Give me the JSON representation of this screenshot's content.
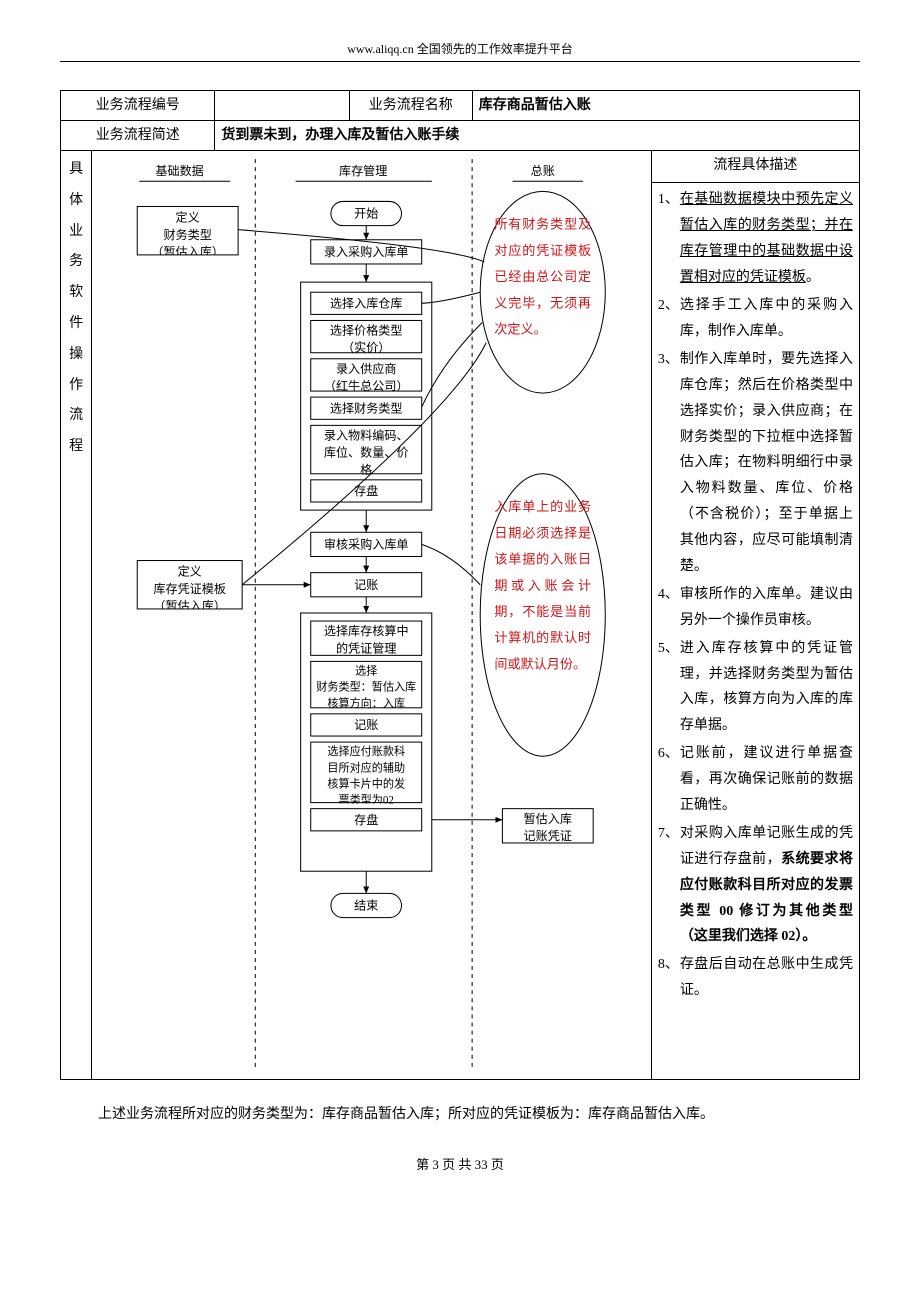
{
  "header": {
    "text": "www.aliqq.cn   全国领先的工作效率提升平台"
  },
  "table": {
    "row1": {
      "c1": "业务流程编号",
      "c2": "",
      "c3": "业务流程名称",
      "c4": "库存商品暂估入账"
    },
    "row2": {
      "c1": "业务流程简述",
      "c2": "货到票未到，办理入库及暂估入账手续"
    }
  },
  "side_label": "具体业务软件操作流程",
  "lanes": {
    "l1": "基础数据",
    "l2": "库存管理",
    "l3": "总账"
  },
  "nodes": {
    "def_fintype": "定义\n财务类型\n（暂估入库）",
    "start": "开始",
    "rec_in": "录入采购入库单",
    "sel_wh": "选择入库仓库",
    "sel_price": "选择价格类型\n（实价）",
    "rec_sup": "录入供应商\n（红牛总公司）",
    "sel_fin": "选择财务类型",
    "rec_mat": "录入物料编码、\n库位、数量、价\n格",
    "save1": "存盘",
    "audit": "审核采购入库单",
    "def_tpl": "定义\n库存凭证模板\n（暂估入库）",
    "posting": "记账",
    "sel_vchmgr": "选择库存核算中\n的凭证管理",
    "sel_dir": "选择\n财务类型：暂估入库\n核算方向：入库",
    "posting2": "记账",
    "sel_aux": "选择应付账款科\n目所对应的辅助\n核算卡片中的发\n票类型为02",
    "save2": "存盘",
    "end": "结束",
    "result": "暂估入库\n记账凭证"
  },
  "callouts": {
    "c1": "所有财务类型及对应的凭证模板已经由总公司定义完毕，无须再次定义。",
    "c2": "入库单上的业务日期必须选择是该单据的入账日期或入账会计期，不能是当前计算机的默认时间或默认月份。"
  },
  "desc_title": "流程具体描述",
  "desc": [
    {
      "n": "1、",
      "html": "<span class='u'>在基础数据模块中预先定义暂估入库的财务类型；并在库存管理中的基础数据中设置相对应的凭证模板</span>。"
    },
    {
      "n": "2、",
      "html": "选择手工入库中的采购入库，制作入库单。"
    },
    {
      "n": "3、",
      "html": "制作入库单时，要先选择入库仓库；然后在价格类型中选择实价；录入供应商；在财务类型的下拉框中选择暂估入库；在物料明细行中录入物料数量、库位、价格（不含税价）；至于单据上其他内容，应尽可能填制清楚。"
    },
    {
      "n": "4、",
      "html": "审核所作的入库单。建议由另外一个操作员审核。"
    },
    {
      "n": "5、",
      "html": "进入库存核算中的凭证管理，并选择财务类型为暂估入库，核算方向为入库的库存单据。"
    },
    {
      "n": "6、",
      "html": "记账前，建议进行单据查看，再次确保记账前的数据正确性。"
    },
    {
      "n": "7、",
      "html": "对采购入库单记账生成的凭证进行存盘前，<span class='b'>系统要求将应付账款科目所对应的发票类型 00 修订为其他类型（这里我们选择 02）。</span>"
    },
    {
      "n": "8、",
      "html": "存盘后自动在总账中生成凭证。"
    }
  ],
  "footer_para": "上述业务流程所对应的财务类型为：库存商品暂估入库；所对应的凭证模板为：库存商品暂估入库。",
  "pager": {
    "pre": "第 ",
    "cur": "3",
    "mid": " 页 共 ",
    "total": "33",
    "suf": " 页"
  },
  "style": {
    "stroke": "#000000",
    "red": "#d1161a",
    "font_node": 12,
    "font_lane": 12
  }
}
